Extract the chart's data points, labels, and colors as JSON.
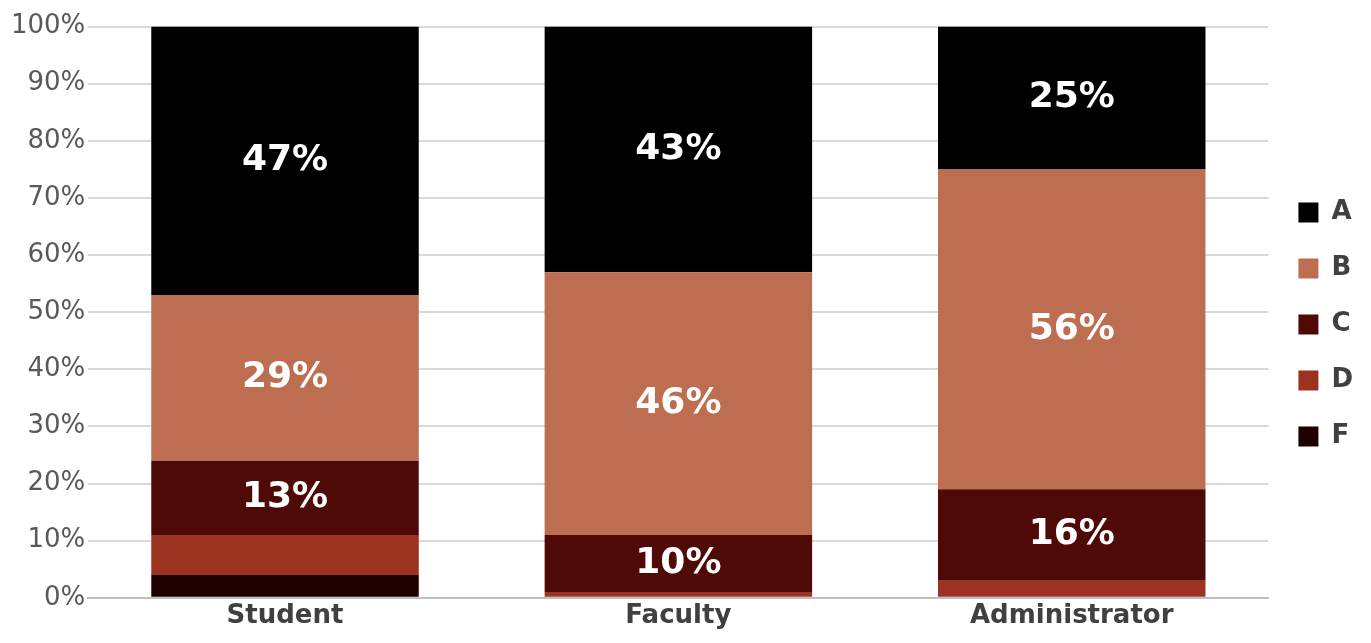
{
  "chart_data": {
    "type": "bar",
    "stacked": true,
    "categories": [
      "Student",
      "Faculty",
      "Administrator"
    ],
    "series": [
      {
        "name": "F",
        "color": "#1f0000",
        "values": [
          4,
          0,
          0
        ],
        "value_labels": [
          null,
          null,
          null
        ]
      },
      {
        "name": "D",
        "color": "#9c3220",
        "values": [
          7,
          1,
          3
        ],
        "value_labels": [
          null,
          null,
          null
        ]
      },
      {
        "name": "C",
        "color": "#4f0907",
        "values": [
          13,
          10,
          16
        ],
        "value_labels": [
          "13%",
          "10%",
          "16%"
        ]
      },
      {
        "name": "B",
        "color": "#bd6e50",
        "values": [
          29,
          46,
          56
        ],
        "value_labels": [
          "29%",
          "46%",
          "56%"
        ]
      },
      {
        "name": "A",
        "color": "#000000",
        "values": [
          47,
          43,
          25
        ],
        "value_labels": [
          "47%",
          "43%",
          "25%"
        ]
      }
    ],
    "ylim": [
      0,
      100
    ],
    "yticks": [
      {
        "value": 0,
        "label": "0%"
      },
      {
        "value": 10,
        "label": "10%"
      },
      {
        "value": 20,
        "label": "20%"
      },
      {
        "value": 30,
        "label": "30%"
      },
      {
        "value": 40,
        "label": "40%"
      },
      {
        "value": 50,
        "label": "50%"
      },
      {
        "value": 60,
        "label": "60%"
      },
      {
        "value": 70,
        "label": "70%"
      },
      {
        "value": 80,
        "label": "80%"
      },
      {
        "value": 90,
        "label": "90%"
      },
      {
        "value": 100,
        "label": "100%"
      }
    ],
    "grid": "y",
    "legend": "right"
  }
}
